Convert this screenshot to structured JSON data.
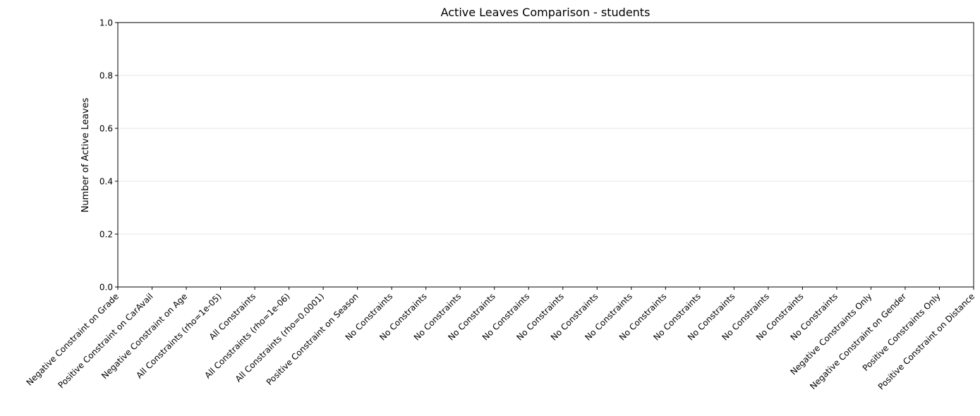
{
  "chart_data": {
    "type": "bar",
    "title": "Active Leaves Comparison - students",
    "xlabel": "",
    "ylabel": "Number of Active Leaves",
    "ylim": [
      0,
      1
    ],
    "yticks": [
      0.0,
      0.2,
      0.4,
      0.6,
      0.8,
      1.0
    ],
    "grid": "y",
    "categories": [
      "Negative Constraint on Grade",
      "Positive Constraint on CarAvail",
      "Negative Constraint on Age",
      "All Constraints (rho=1e-05)",
      "All Constraints",
      "All Constraints (rho=1e-06)",
      "All Constraints (rho=0.0001)",
      "Positive Constraint on Season",
      "No Constraints",
      "No Constraints",
      "No Constraints",
      "No Constraints",
      "No Constraints",
      "No Constraints",
      "No Constraints",
      "No Constraints",
      "No Constraints",
      "No Constraints",
      "No Constraints",
      "No Constraints",
      "No Constraints",
      "No Constraints",
      "Negative Constraints Only",
      "Negative Constraint on Gender",
      "Positive Constraints Only",
      "Positive Constraint on Distance"
    ],
    "values": [
      0,
      0,
      0,
      0,
      0,
      0,
      0,
      0,
      0,
      0,
      0,
      0,
      0,
      0,
      0,
      0,
      0,
      0,
      0,
      0,
      0,
      0,
      0,
      0,
      0,
      0
    ]
  }
}
